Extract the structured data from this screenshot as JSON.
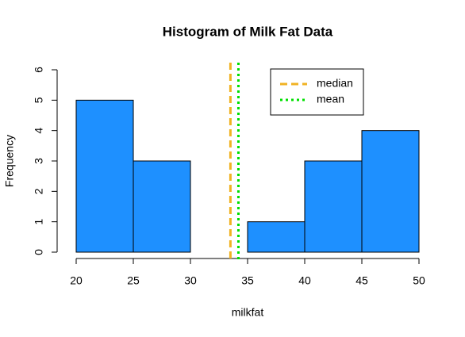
{
  "chart_data": {
    "type": "histogram",
    "title": "Histogram of Milk Fat Data",
    "x_label": "milkfat",
    "y_label": "Frequency",
    "bins": [
      20,
      25,
      30,
      35,
      40,
      45,
      50
    ],
    "values": [
      5,
      3,
      0,
      1,
      3,
      4
    ],
    "color": "#1e90ff",
    "xlim": [
      20,
      50
    ],
    "ylim": [
      0,
      6
    ],
    "xticks": [
      20,
      25,
      30,
      35,
      40,
      45,
      50
    ],
    "yticks": [
      0,
      1,
      2,
      3,
      4,
      5,
      6
    ],
    "reference_lines": [
      {
        "name": "median",
        "value": 33.5,
        "color": "#f0b323",
        "dash": "dashed"
      },
      {
        "name": "mean",
        "value": 34.2,
        "color": "#00e000",
        "dash": "dotted"
      }
    ],
    "legend": "top-right"
  }
}
